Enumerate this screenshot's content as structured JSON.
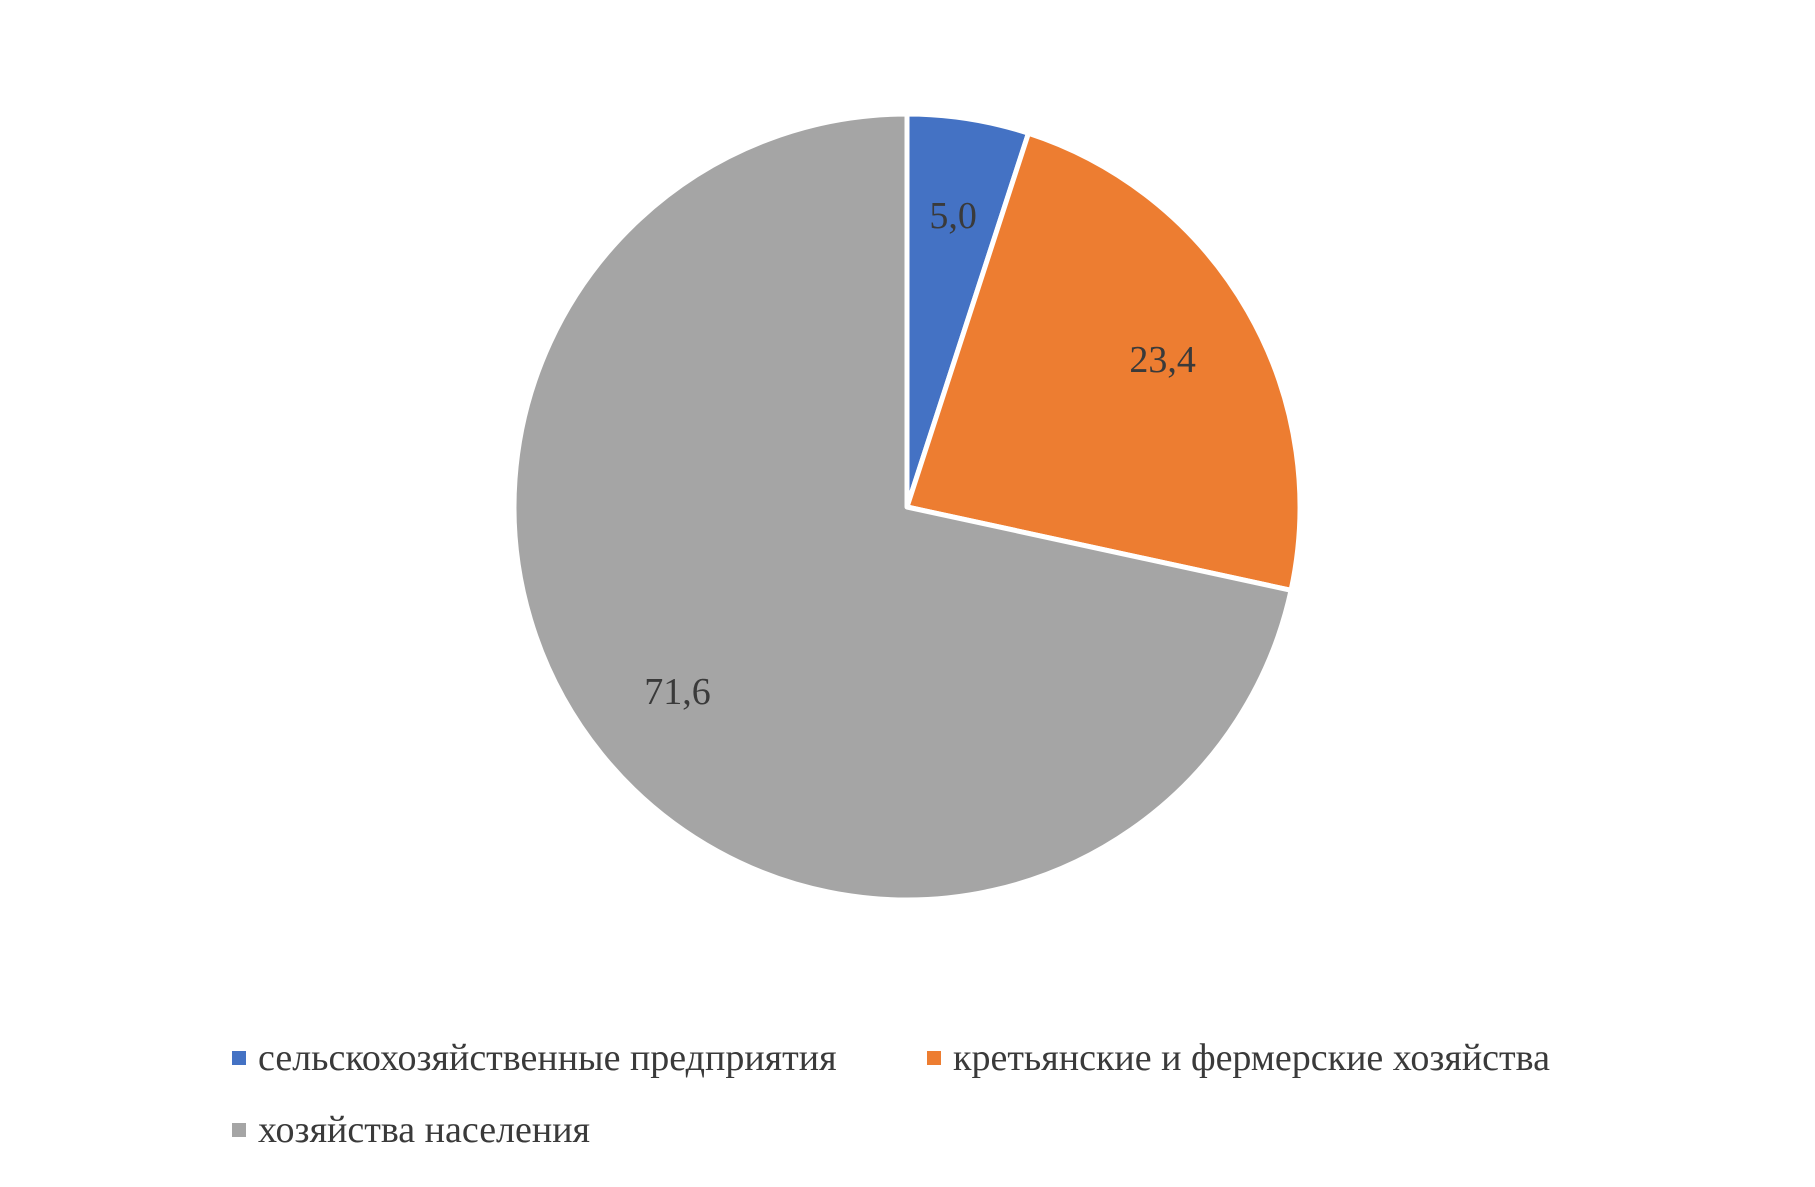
{
  "chart_data": {
    "type": "pie",
    "categories": [
      "сельскохозяйственные предприятия",
      "кретьянские и фермерские хозяйства",
      "хозяйства населения"
    ],
    "values": [
      5.0,
      23.4,
      71.6
    ],
    "data_labels": [
      "5,0",
      "23,4",
      "71,6"
    ],
    "colors": [
      "#4472C4",
      "#ED7D31",
      "#A5A5A5"
    ],
    "title": "",
    "legend_position": "bottom"
  }
}
